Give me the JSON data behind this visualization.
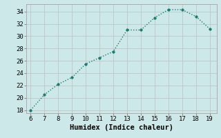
{
  "x": [
    6,
    7,
    8,
    9,
    10,
    11,
    12,
    13,
    14,
    15,
    16,
    17,
    18,
    19
  ],
  "y": [
    18,
    20.5,
    22.2,
    23.3,
    25.5,
    26.5,
    27.5,
    31.0,
    31.0,
    33.0,
    34.3,
    34.3,
    33.2,
    31.2
  ],
  "line_color": "#1a7a6e",
  "marker": "o",
  "marker_size": 2.5,
  "linewidth": 1.0,
  "xlabel": "Humidex (Indice chaleur)",
  "xlim": [
    5.7,
    19.5
  ],
  "ylim": [
    17.5,
    35.2
  ],
  "xticks": [
    6,
    7,
    8,
    9,
    10,
    11,
    12,
    13,
    14,
    15,
    16,
    17,
    18,
    19
  ],
  "yticks": [
    18,
    20,
    22,
    24,
    26,
    28,
    30,
    32,
    34
  ],
  "bg_color": "#cde8e8",
  "grid_color": "#b8c8c8",
  "tick_fontsize": 6.5,
  "xlabel_fontsize": 7.5
}
